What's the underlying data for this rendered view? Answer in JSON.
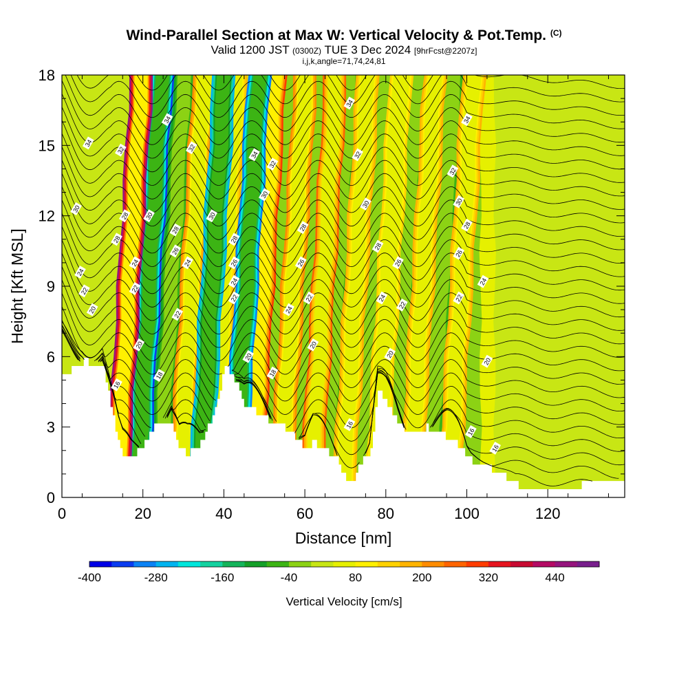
{
  "header": {
    "title_main": "Wind-Parallel Section at Max W: Vertical Velocity & Pot.Temp.",
    "title_mark": "(C)",
    "valid_prefix": "Valid 1200 JST",
    "valid_utc": "(0300Z)",
    "valid_date": "TUE 3 Dec 2024",
    "forecast_info": "[9hrFcst@2207z]",
    "grid_info": "i,j,k,angle=71,74,24,81"
  },
  "chart_data": {
    "type": "heatmap",
    "xlabel": "Distance [nm]",
    "ylabel": "Height [Kft MSL]",
    "xlim": [
      0,
      139
    ],
    "ylim": [
      0,
      18
    ],
    "x_ticks": [
      0,
      20,
      40,
      60,
      80,
      100,
      120
    ],
    "y_ticks": [
      0,
      3,
      6,
      9,
      12,
      15,
      18
    ],
    "colorbar": {
      "label": "Vertical Velocity [cm/s]",
      "min": -400,
      "max": 480,
      "step": 40,
      "tick_labels": [
        -400,
        -280,
        -160,
        -40,
        80,
        200,
        320,
        440
      ],
      "colors": [
        "#0000e6",
        "#0a3cf0",
        "#0a82f5",
        "#00b4f0",
        "#00e6dc",
        "#14d2a0",
        "#14b45a",
        "#14a028",
        "#3cb414",
        "#8cd214",
        "#c8e614",
        "#e6f000",
        "#fff000",
        "#ffd200",
        "#ffb400",
        "#ff8c00",
        "#ff6400",
        "#ff3c00",
        "#e6141e",
        "#c80a32",
        "#b40a64",
        "#96147d",
        "#781e8c"
      ]
    },
    "terrain_profile": {
      "x": [
        0,
        5,
        10,
        12,
        14,
        15,
        17,
        20,
        23,
        27,
        29,
        31,
        34,
        38,
        40,
        42,
        45,
        48,
        52,
        55,
        58,
        60,
        62,
        65,
        68,
        70,
        72,
        74,
        76,
        78,
        80,
        83,
        86,
        90,
        95,
        98,
        101,
        105,
        110,
        115,
        120,
        125,
        130,
        135,
        139
      ],
      "y": [
        5.1,
        5.8,
        5.7,
        4.0,
        2.2,
        1.7,
        1.7,
        2.2,
        3.2,
        3.3,
        2.0,
        1.9,
        2.2,
        3.8,
        5.6,
        5.3,
        4.0,
        3.6,
        3.2,
        3.0,
        2.5,
        2.0,
        2.4,
        2.0,
        1.6,
        0.8,
        0.7,
        1.6,
        1.8,
        4.5,
        4.1,
        3.2,
        2.6,
        3.0,
        2.6,
        2.2,
        1.6,
        1.3,
        0.8,
        0.3,
        0.3,
        0.4,
        0.6,
        0.7,
        0.8
      ]
    },
    "velocity_bands": [
      {
        "x": 13.5,
        "w_cm_s": 440
      },
      {
        "x": 18.5,
        "w_cm_s": -360
      },
      {
        "x": 24,
        "w_cm_s": -160
      },
      {
        "x": 29,
        "w_cm_s": 200
      },
      {
        "x": 34,
        "w_cm_s": -280
      },
      {
        "x": 37,
        "w_cm_s": 160
      },
      {
        "x": 42.5,
        "w_cm_s": -320
      },
      {
        "x": 46.5,
        "w_cm_s": 280
      },
      {
        "x": 50,
        "w_cm_s": -120
      },
      {
        "x": 54,
        "w_cm_s": 200
      },
      {
        "x": 58,
        "w_cm_s": -80
      },
      {
        "x": 61.5,
        "w_cm_s": 240
      },
      {
        "x": 65,
        "w_cm_s": -160
      },
      {
        "x": 69.5,
        "w_cm_s": 160
      },
      {
        "x": 73.5,
        "w_cm_s": -120
      },
      {
        "x": 77.5,
        "w_cm_s": 120
      },
      {
        "x": 81.5,
        "w_cm_s": -100
      },
      {
        "x": 86,
        "w_cm_s": 160
      },
      {
        "x": 90.5,
        "w_cm_s": -100
      },
      {
        "x": 95.5,
        "w_cm_s": 160
      },
      {
        "x": 100.5,
        "w_cm_s": -60
      },
      {
        "x": 104,
        "w_cm_s": 20
      },
      {
        "x": 112,
        "w_cm_s": -20
      },
      {
        "x": 122,
        "w_cm_s": 0
      },
      {
        "x": 132,
        "w_cm_s": -20
      }
    ],
    "isentropes": {
      "variable": "Pot.Temp.",
      "levels": [
        16,
        18,
        20,
        22,
        24,
        26,
        28,
        30,
        32,
        34
      ],
      "labels": [
        {
          "text": "16",
          "x": 13.5,
          "y": 4.8
        },
        {
          "text": "18",
          "x": 24,
          "y": 5.2
        },
        {
          "text": "18",
          "x": 52,
          "y": 5.3
        },
        {
          "text": "16",
          "x": 71,
          "y": 3.1
        },
        {
          "text": "16",
          "x": 101,
          "y": 2.8
        },
        {
          "text": "16",
          "x": 107,
          "y": 2.1
        },
        {
          "text": "20",
          "x": 19,
          "y": 6.5
        },
        {
          "text": "20",
          "x": 46,
          "y": 6.0
        },
        {
          "text": "20",
          "x": 62,
          "y": 6.5
        },
        {
          "text": "20",
          "x": 81,
          "y": 6.1
        },
        {
          "text": "20",
          "x": 105,
          "y": 5.8
        },
        {
          "text": "20",
          "x": 7.5,
          "y": 8.0
        },
        {
          "text": "22",
          "x": 5.5,
          "y": 8.8
        },
        {
          "text": "22",
          "x": 18,
          "y": 8.9
        },
        {
          "text": "22",
          "x": 28.5,
          "y": 7.8
        },
        {
          "text": "22",
          "x": 42.5,
          "y": 8.5
        },
        {
          "text": "22",
          "x": 61,
          "y": 8.5
        },
        {
          "text": "22",
          "x": 84,
          "y": 8.2
        },
        {
          "text": "22",
          "x": 98,
          "y": 8.5
        },
        {
          "text": "24",
          "x": 4.5,
          "y": 9.6
        },
        {
          "text": "24",
          "x": 18,
          "y": 10.0
        },
        {
          "text": "24",
          "x": 31,
          "y": 10.0
        },
        {
          "text": "24",
          "x": 42.5,
          "y": 9.2
        },
        {
          "text": "24",
          "x": 56,
          "y": 8.0
        },
        {
          "text": "24",
          "x": 79,
          "y": 8.5
        },
        {
          "text": "24",
          "x": 104,
          "y": 9.2
        },
        {
          "text": "26",
          "x": 28,
          "y": 10.5
        },
        {
          "text": "26",
          "x": 42.5,
          "y": 10.0
        },
        {
          "text": "26",
          "x": 59,
          "y": 10.0
        },
        {
          "text": "26",
          "x": 83,
          "y": 10.0
        },
        {
          "text": "26",
          "x": 98,
          "y": 10.4
        },
        {
          "text": "28",
          "x": 13.5,
          "y": 11.0
        },
        {
          "text": "28",
          "x": 28,
          "y": 11.4
        },
        {
          "text": "28",
          "x": 42.5,
          "y": 11.0
        },
        {
          "text": "28",
          "x": 59.5,
          "y": 11.5
        },
        {
          "text": "28",
          "x": 78,
          "y": 10.7
        },
        {
          "text": "28",
          "x": 100,
          "y": 11.6
        },
        {
          "text": "28",
          "x": 15.5,
          "y": 12.0
        },
        {
          "text": "30",
          "x": 3.5,
          "y": 12.3
        },
        {
          "text": "30",
          "x": 21.5,
          "y": 12.0
        },
        {
          "text": "30",
          "x": 37,
          "y": 12.0
        },
        {
          "text": "30",
          "x": 50,
          "y": 12.9
        },
        {
          "text": "30",
          "x": 75,
          "y": 12.5
        },
        {
          "text": "30",
          "x": 98,
          "y": 12.6
        },
        {
          "text": "32",
          "x": 14.5,
          "y": 14.8
        },
        {
          "text": "32",
          "x": 32,
          "y": 14.9
        },
        {
          "text": "32",
          "x": 52,
          "y": 14.2
        },
        {
          "text": "32",
          "x": 73,
          "y": 14.6
        },
        {
          "text": "32",
          "x": 96.5,
          "y": 13.9
        },
        {
          "text": "34",
          "x": 6.5,
          "y": 15.1
        },
        {
          "text": "34",
          "x": 26,
          "y": 16.1
        },
        {
          "text": "34",
          "x": 47.5,
          "y": 14.6
        },
        {
          "text": "34",
          "x": 71,
          "y": 16.8
        },
        {
          "text": "34",
          "x": 100,
          "y": 16.1
        }
      ]
    }
  }
}
